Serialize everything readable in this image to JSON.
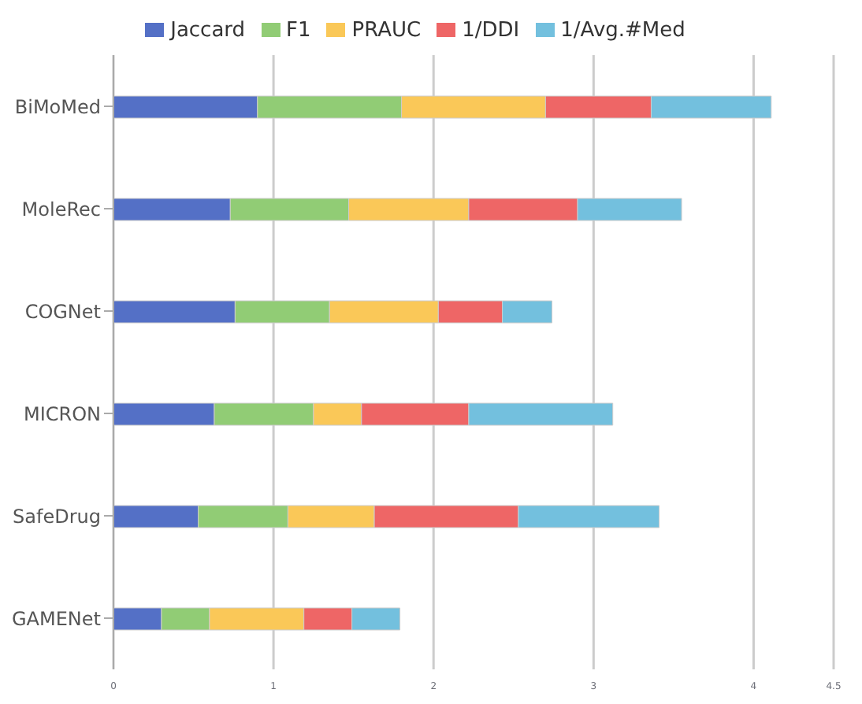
{
  "chart_data": {
    "type": "bar",
    "orientation": "horizontal",
    "stacked": true,
    "categories": [
      "BiMoMed",
      "MoleRec",
      "COGNet",
      "MICRON",
      "SafeDrug",
      "GAMENet"
    ],
    "series": [
      {
        "name": "Jaccard",
        "color": "#5470c6",
        "values": [
          0.9,
          0.73,
          0.76,
          0.63,
          0.53,
          0.3
        ]
      },
      {
        "name": "F1",
        "color": "#91cc75",
        "values": [
          0.9,
          0.74,
          0.59,
          0.62,
          0.56,
          0.3
        ]
      },
      {
        "name": "PRAUC",
        "color": "#fac858",
        "values": [
          0.9,
          0.75,
          0.68,
          0.3,
          0.54,
          0.59
        ]
      },
      {
        "name": "1/DDI",
        "color": "#ee6666",
        "values": [
          0.66,
          0.68,
          0.4,
          0.67,
          0.9,
          0.3
        ]
      },
      {
        "name": "1/Avg.#Med",
        "color": "#73c0de",
        "values": [
          0.75,
          0.65,
          0.31,
          0.9,
          0.88,
          0.3
        ]
      }
    ],
    "xlim": [
      0,
      4.5
    ],
    "xticks": [
      0,
      1,
      2,
      3,
      4,
      4.5
    ],
    "grid": "x",
    "legend": "top"
  }
}
